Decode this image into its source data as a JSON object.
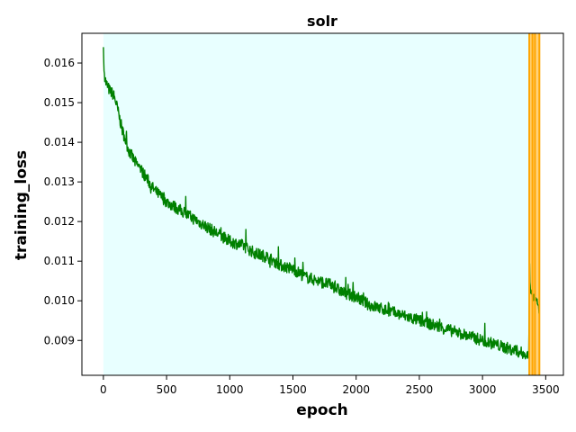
{
  "chart_data": {
    "type": "line",
    "title": "solr",
    "xlabel": "epoch",
    "ylabel": "training_loss",
    "xlim": [
      -170,
      3640
    ],
    "ylim": [
      0.00812,
      0.01675
    ],
    "xticks": [
      0,
      500,
      1000,
      1500,
      2000,
      2500,
      3000,
      3500
    ],
    "yticks": [
      0.009,
      0.01,
      0.011,
      0.012,
      0.013,
      0.014,
      0.015,
      0.016
    ],
    "ytick_labels": [
      "0.009",
      "0.010",
      "0.011",
      "0.012",
      "0.013",
      "0.014",
      "0.015",
      "0.016"
    ],
    "grid": false,
    "legend": "none",
    "colors": {
      "line": "#008000",
      "region_fill": "#e8ffff",
      "marker_fill": "#ffd27a",
      "marker_edge": "#ffa500"
    },
    "shaded_regions": [
      {
        "x_start": 0,
        "x_end": 3370,
        "color": "#e8ffff"
      },
      {
        "x_start": 3370,
        "x_end": 3450,
        "color": "#ffd27a"
      }
    ],
    "vertical_lines": [
      3370,
      3395,
      3415,
      3450
    ],
    "series": [
      {
        "color": "#008000",
        "points": [
          [
            0,
            0.0164
          ],
          [
            5,
            0.0158
          ],
          [
            20,
            0.0155
          ],
          [
            50,
            0.0153
          ],
          [
            80,
            0.0152
          ],
          [
            100,
            0.015
          ],
          [
            150,
            0.0143
          ],
          [
            200,
            0.0138
          ],
          [
            250,
            0.0135
          ],
          [
            300,
            0.0133
          ],
          [
            400,
            0.0128
          ],
          [
            500,
            0.0125
          ],
          [
            600,
            0.0123
          ],
          [
            700,
            0.0121
          ],
          [
            800,
            0.0119
          ],
          [
            900,
            0.0117
          ],
          [
            1000,
            0.0115
          ],
          [
            1100,
            0.0114
          ],
          [
            1200,
            0.0112
          ],
          [
            1300,
            0.0111
          ],
          [
            1400,
            0.0109
          ],
          [
            1500,
            0.0108
          ],
          [
            1600,
            0.0106
          ],
          [
            1700,
            0.0105
          ],
          [
            1800,
            0.0104
          ],
          [
            1900,
            0.0102
          ],
          [
            2000,
            0.0101
          ],
          [
            2100,
            0.0099
          ],
          [
            2200,
            0.0098
          ],
          [
            2300,
            0.0097
          ],
          [
            2400,
            0.0096
          ],
          [
            2500,
            0.0095
          ],
          [
            2600,
            0.0094
          ],
          [
            2700,
            0.0093
          ],
          [
            2800,
            0.0092
          ],
          [
            2900,
            0.0091
          ],
          [
            3000,
            0.009
          ],
          [
            3100,
            0.0089
          ],
          [
            3200,
            0.0088
          ],
          [
            3300,
            0.0087
          ],
          [
            3365,
            0.0086
          ],
          [
            3372,
            0.0107
          ],
          [
            3380,
            0.0103
          ],
          [
            3400,
            0.0101
          ],
          [
            3420,
            0.01
          ],
          [
            3440,
            0.0099
          ],
          [
            3450,
            0.0097
          ]
        ]
      }
    ]
  }
}
